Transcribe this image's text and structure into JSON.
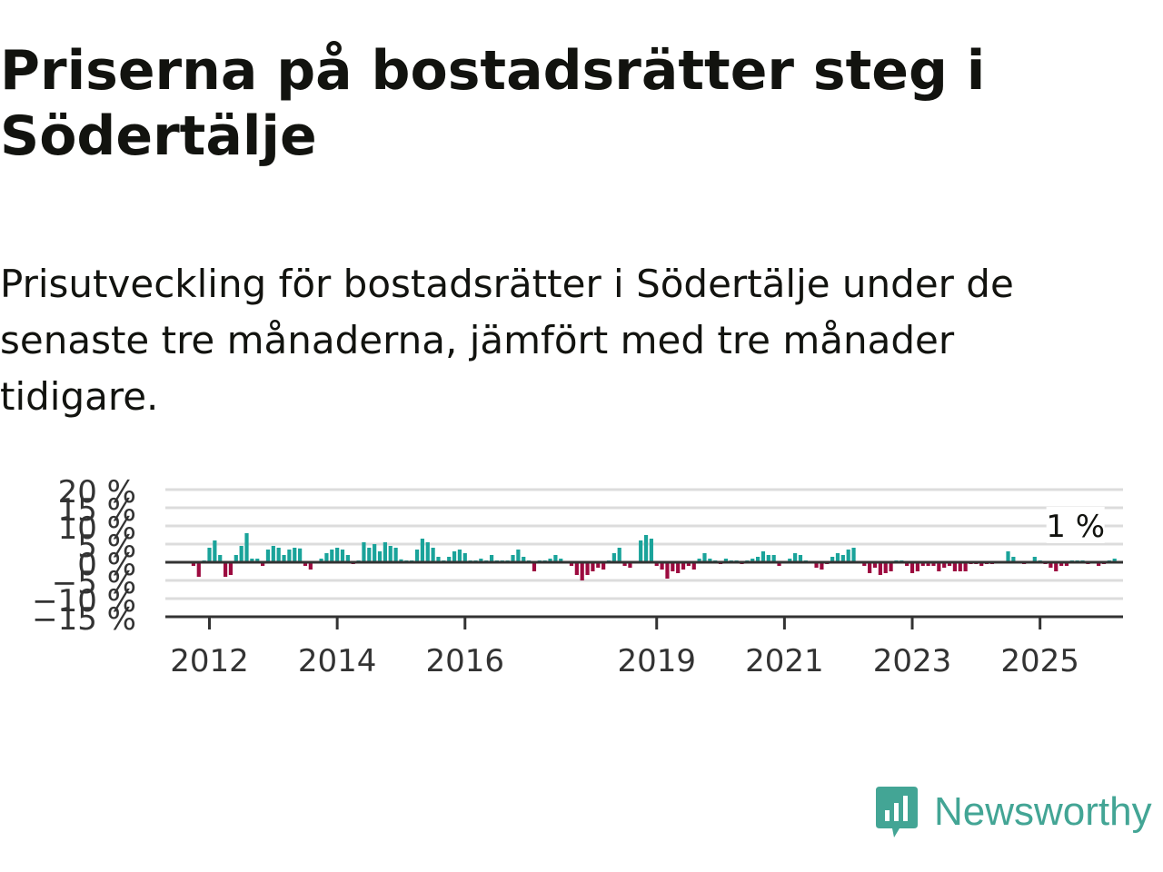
{
  "header": {
    "title": "Priserna på bostadsrätter steg i Södertälje",
    "subtitle": "Prisutveckling för bostadsrätter i Södertälje under de senaste tre månaderna, jämfört med tre månader tidigare."
  },
  "brand": {
    "name": "Newsworthy",
    "logo_icon": "bar-chart-speech-bubble-icon",
    "color": "#43a595"
  },
  "colors": {
    "positive": "#1aa39a",
    "negative": "#9c0a3f",
    "grid": "#dcdcdc",
    "axis": "#333333"
  },
  "chart_data": {
    "type": "bar",
    "title": "",
    "xlabel": "",
    "ylabel": "",
    "ylim": [
      -15,
      20
    ],
    "y_ticks": [
      "20 %",
      "15 %",
      "10 %",
      "5 %",
      "0 %",
      "−5 %",
      "−10 %",
      "−15 %"
    ],
    "x_ticks": [
      "2012",
      "2014",
      "2016",
      "2019",
      "2021",
      "2023",
      "2025"
    ],
    "x_tick_positions": [
      "2012-01",
      "2014-01",
      "2016-01",
      "2019-01",
      "2021-01",
      "2023-01",
      "2025-01"
    ],
    "start": "2011-10",
    "interval": "month",
    "grid": true,
    "annotation": {
      "text": "1 %",
      "x": "2025-08",
      "value": 1
    },
    "series": [
      {
        "values": [
          -1,
          -4,
          0.5,
          4,
          6,
          2,
          -4,
          -3.5,
          2,
          4.5,
          8,
          1,
          1,
          -1,
          3.5,
          4.5,
          4,
          2,
          3.5,
          4,
          3.8,
          -1,
          -2,
          0,
          1,
          2.5,
          3.5,
          4,
          3.5,
          2,
          -0.5,
          0.5,
          5.5,
          4,
          5,
          3,
          5.5,
          4.5,
          4,
          0.8,
          0.5,
          0.5,
          3.5,
          6.5,
          5.5,
          4,
          1.5,
          0.5,
          1.5,
          3,
          3.5,
          2.5,
          0.5,
          0.5,
          1,
          0.5,
          2,
          0.5,
          0.5,
          0.5,
          2,
          3.5,
          1.5,
          0.5,
          -2.5,
          0.5,
          0.5,
          1,
          2,
          1,
          0,
          -1,
          -3.5,
          -5,
          -3.5,
          -2.5,
          -1.5,
          -2,
          0.5,
          2.5,
          4,
          -1,
          -1.5,
          0,
          6,
          7.5,
          6.5,
          -1,
          -2,
          -4.5,
          -2.5,
          -3,
          -2,
          -1,
          -2,
          1,
          2.5,
          1,
          0.5,
          -0.5,
          1,
          0.5,
          0.5,
          -0.5,
          0.5,
          1,
          1.5,
          3,
          2,
          2,
          -1,
          0,
          1,
          2.5,
          2,
          0.5,
          0,
          -1.5,
          -2,
          -0.5,
          1.5,
          2.5,
          2,
          3.5,
          4,
          0,
          -1,
          -3,
          -1.5,
          -3.5,
          -3,
          -2.5,
          0.5,
          0.5,
          -1,
          -3,
          -2.5,
          -1,
          -1,
          -1,
          -2.5,
          -1.5,
          -1,
          -2.5,
          -2.5,
          -2.5,
          -0.5,
          -0.5,
          -1,
          -0.5,
          -0.5,
          0,
          0,
          3,
          1.5,
          0.2,
          -0.5,
          -0.2,
          1.5,
          0.5,
          -0.5,
          -1.5,
          -2.5,
          -1,
          -1,
          0.5,
          0.5,
          0.5,
          -0.5,
          0.2,
          -1,
          -0.5,
          0.5,
          1
        ]
      }
    ]
  }
}
